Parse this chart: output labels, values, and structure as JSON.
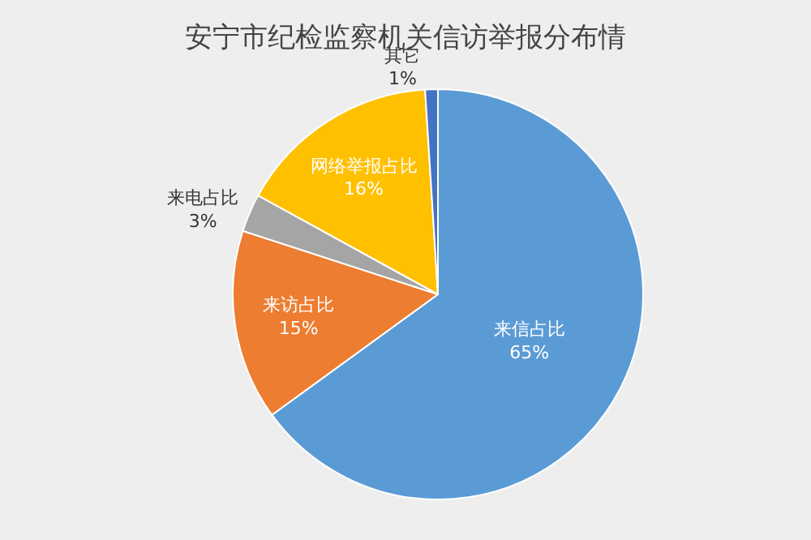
{
  "chart_data": {
    "type": "pie",
    "title": "安宁市纪检监察机关信访举报分布情",
    "categories": [
      "来信占比",
      "来访占比",
      "来电占比",
      "网络举报占比",
      "其它"
    ],
    "values": [
      65,
      15,
      3,
      16,
      1
    ],
    "value_labels": [
      "65%",
      "15%",
      "3%",
      "16%",
      "1%"
    ],
    "colors": [
      "#5b9bd5",
      "#ed7d31",
      "#a5a5a5",
      "#ffc000",
      "#4472c4"
    ],
    "legend": false
  }
}
